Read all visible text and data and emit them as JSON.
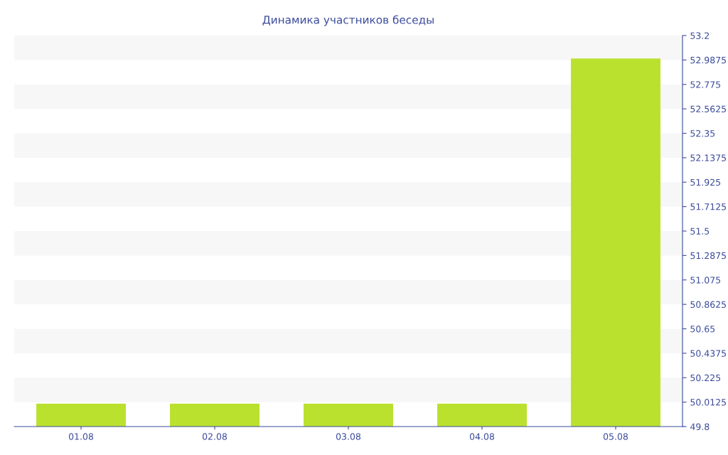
{
  "chart_data": {
    "type": "bar",
    "title": "Динамика участников беседы",
    "categories": [
      "01.08",
      "02.08",
      "03.08",
      "04.08",
      "05.08"
    ],
    "values": [
      50,
      50,
      50,
      50,
      53
    ],
    "color": "#bbe12f",
    "ylim": [
      49.8,
      53.2
    ],
    "yticks": [
      49.8,
      50.0125,
      50.225,
      50.4375,
      50.65,
      50.8625,
      51.075,
      51.2875,
      51.5,
      51.7125,
      51.925,
      52.1375,
      52.35,
      52.5625,
      52.775,
      52.9875,
      53.2
    ],
    "bands": [
      {
        "axis": "y",
        "from": 50.0125,
        "to": 50.225,
        "color": "#f7f7f7"
      },
      {
        "axis": "y",
        "from": 50.4375,
        "to": 50.65,
        "color": "#f7f7f7"
      },
      {
        "axis": "y",
        "from": 50.8625,
        "to": 51.075,
        "color": "#f7f7f7"
      },
      {
        "axis": "y",
        "from": 51.2875,
        "to": 51.5,
        "color": "#f7f7f7"
      },
      {
        "axis": "y",
        "from": 51.7125,
        "to": 51.925,
        "color": "#f7f7f7"
      },
      {
        "axis": "y",
        "from": 52.1375,
        "to": 52.35,
        "color": "#f7f7f7"
      },
      {
        "axis": "y",
        "from": 52.5625,
        "to": 52.775,
        "color": "#f7f7f7"
      },
      {
        "axis": "y",
        "from": 52.9875,
        "to": 53.2,
        "color": "#f7f7f7"
      }
    ],
    "legend": false
  }
}
